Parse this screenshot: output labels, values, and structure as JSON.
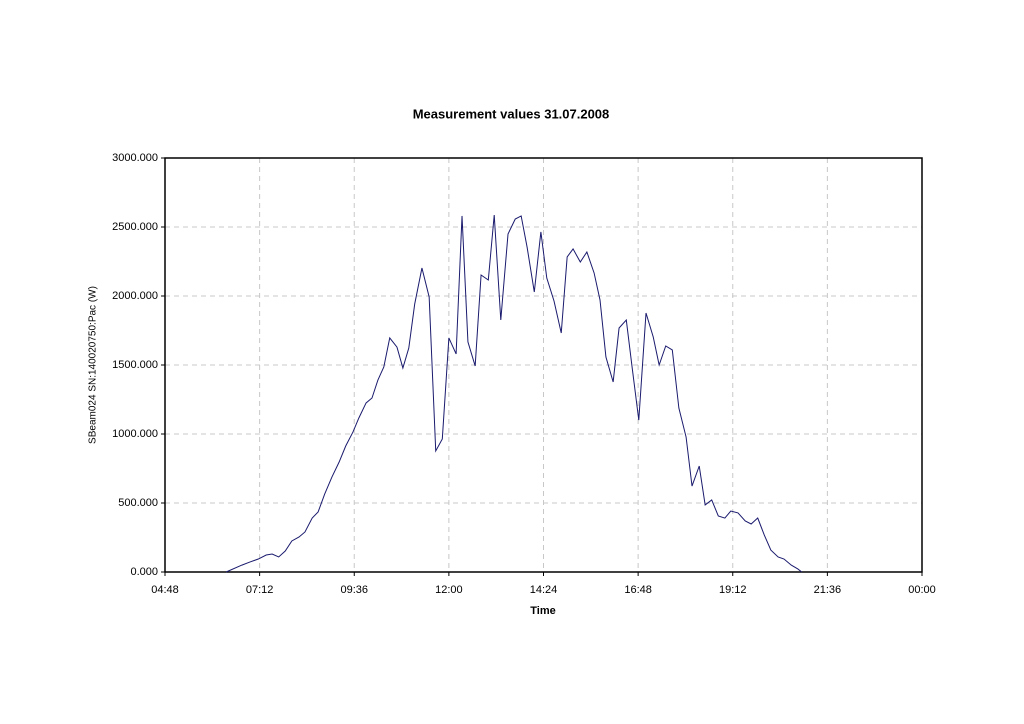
{
  "chart_data": {
    "type": "line",
    "title": "Measurement values 31.07.2008",
    "xlabel": "Time",
    "ylabel": "SBeam024 SN:140020750:Pac (W)",
    "x": [
      381,
      405,
      417,
      430,
      442,
      451,
      461,
      471,
      481,
      492,
      501,
      512,
      521,
      531,
      542,
      553,
      563,
      574,
      583,
      594,
      603,
      612,
      621,
      630,
      641,
      650,
      659,
      668,
      679,
      690,
      700,
      710,
      720,
      731,
      740,
      749,
      760,
      769,
      780,
      789,
      799,
      810,
      821,
      830,
      839,
      850,
      860,
      869,
      880,
      891,
      900,
      909,
      920,
      930,
      941,
      950,
      959,
      970,
      979,
      990,
      999,
      1009,
      1020,
      1031,
      1040,
      1050,
      1060,
      1070,
      1081,
      1090,
      1101,
      1110,
      1120,
      1130,
      1140,
      1149,
      1160,
      1171,
      1180,
      1190,
      1200,
      1210,
      1221,
      1230,
      1241,
      1251,
      1257
    ],
    "series": [
      {
        "name": "SBeam024 SN:140020750:Pac (W)",
        "color": "#1a1a6e",
        "values": [
          0,
          50,
          72,
          94,
          123,
          130,
          109,
          152,
          225,
          254,
          290,
          391,
          435,
          565,
          688,
          797,
          913,
          1014,
          1116,
          1225,
          1261,
          1391,
          1486,
          1696,
          1630,
          1478,
          1623,
          1942,
          2203,
          1993,
          877,
          964,
          1696,
          1580,
          2580,
          1667,
          1493,
          2152,
          2116,
          2587,
          1826,
          2449,
          2558,
          2580,
          2355,
          2029,
          2464,
          2130,
          1964,
          1732,
          2283,
          2341,
          2246,
          2319,
          2167,
          1971,
          1558,
          1377,
          1768,
          1826,
          1478,
          1101,
          1877,
          1703,
          1500,
          1638,
          1609,
          1188,
          978,
          623,
          768,
          486,
          522,
          406,
          391,
          442,
          428,
          370,
          348,
          391,
          268,
          159,
          109,
          94,
          50,
          22,
          0
        ]
      }
    ],
    "xlim": [
      288,
      1440
    ],
    "xticks": [
      {
        "value": 288,
        "label": "04:48"
      },
      {
        "value": 432,
        "label": "07:12"
      },
      {
        "value": 576,
        "label": "09:36"
      },
      {
        "value": 720,
        "label": "12:00"
      },
      {
        "value": 864,
        "label": "14:24"
      },
      {
        "value": 1008,
        "label": "16:48"
      },
      {
        "value": 1152,
        "label": "19:12"
      },
      {
        "value": 1296,
        "label": "21:36"
      },
      {
        "value": 1440,
        "label": "00:00"
      }
    ],
    "ylim": [
      0,
      3000
    ],
    "yticks": [
      {
        "value": 0,
        "label": "0.000"
      },
      {
        "value": 500,
        "label": "500.000"
      },
      {
        "value": 1000,
        "label": "1000.000"
      },
      {
        "value": 1500,
        "label": "1500.000"
      },
      {
        "value": 2000,
        "label": "2000.000"
      },
      {
        "value": 2500,
        "label": "2500.000"
      },
      {
        "value": 3000,
        "label": "3000.000"
      }
    ],
    "grid": true
  }
}
